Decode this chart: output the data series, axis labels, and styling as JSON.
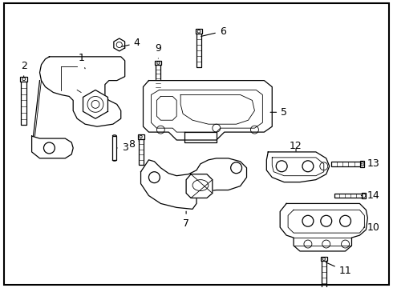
{
  "bg_color": "#ffffff",
  "border_color": "#000000",
  "line_color": "#000000",
  "label_color": "#000000",
  "font_size": 9
}
